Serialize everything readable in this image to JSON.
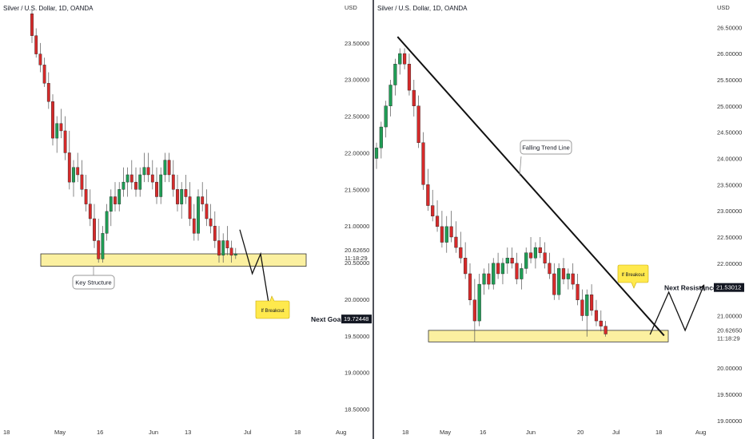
{
  "chart_data": [
    {
      "type": "candlestick",
      "title": "Silver / U.S. Dollar, 1D, OANDA",
      "y_unit": "USD",
      "ylim": [
        18.2,
        24.0
      ],
      "y_ticks": [
        "23.50000",
        "23.00000",
        "22.50000",
        "22.00000",
        "21.50000",
        "21.00000",
        "20.50000",
        "20.00000",
        "19.50000",
        "19.00000",
        "18.50000"
      ],
      "x_ticks": [
        "18",
        "May",
        "16",
        "Jun",
        "13",
        "Jul",
        "18",
        "Aug"
      ],
      "price_label": "20.62650",
      "countdown_label": "11:18:29",
      "goal_label": "19.72448",
      "zone": [
        20.45,
        20.62
      ],
      "candles": [
        [
          23.9,
          23.95,
          23.5,
          23.6
        ],
        [
          23.6,
          23.7,
          23.3,
          23.35
        ],
        [
          23.35,
          23.5,
          23.1,
          23.2
        ],
        [
          23.2,
          23.3,
          22.9,
          22.95
        ],
        [
          22.95,
          23.1,
          22.6,
          22.7
        ],
        [
          22.7,
          22.8,
          22.1,
          22.2
        ],
        [
          22.2,
          22.5,
          22.0,
          22.4
        ],
        [
          22.4,
          22.6,
          22.2,
          22.3
        ],
        [
          22.3,
          22.5,
          21.9,
          22.0
        ],
        [
          22.0,
          22.3,
          21.5,
          21.6
        ],
        [
          21.6,
          21.9,
          21.4,
          21.8
        ],
        [
          21.8,
          22.0,
          21.6,
          21.7
        ],
        [
          21.7,
          21.9,
          21.4,
          21.5
        ],
        [
          21.5,
          21.7,
          21.2,
          21.3
        ],
        [
          21.3,
          21.5,
          21.0,
          21.1
        ],
        [
          21.1,
          21.3,
          20.7,
          20.8
        ],
        [
          20.8,
          21.1,
          20.5,
          20.55
        ],
        [
          20.55,
          21.0,
          20.5,
          20.9
        ],
        [
          20.9,
          21.3,
          20.8,
          21.2
        ],
        [
          21.2,
          21.5,
          21.0,
          21.4
        ],
        [
          21.4,
          21.6,
          21.2,
          21.3
        ],
        [
          21.3,
          21.6,
          21.2,
          21.5
        ],
        [
          21.5,
          21.8,
          21.4,
          21.6
        ],
        [
          21.6,
          21.8,
          21.4,
          21.7
        ],
        [
          21.7,
          21.9,
          21.5,
          21.6
        ],
        [
          21.6,
          21.8,
          21.4,
          21.5
        ],
        [
          21.5,
          21.8,
          21.4,
          21.7
        ],
        [
          21.7,
          22.0,
          21.6,
          21.8
        ],
        [
          21.8,
          22.0,
          21.6,
          21.7
        ],
        [
          21.7,
          21.9,
          21.5,
          21.6
        ],
        [
          21.6,
          21.8,
          21.3,
          21.4
        ],
        [
          21.4,
          21.8,
          21.3,
          21.7
        ],
        [
          21.7,
          22.0,
          21.6,
          21.9
        ],
        [
          21.9,
          22.0,
          21.6,
          21.7
        ],
        [
          21.7,
          21.9,
          21.4,
          21.5
        ],
        [
          21.5,
          21.7,
          21.2,
          21.3
        ],
        [
          21.3,
          21.6,
          21.1,
          21.5
        ],
        [
          21.5,
          21.7,
          21.3,
          21.4
        ],
        [
          21.4,
          21.6,
          21.0,
          21.1
        ],
        [
          21.1,
          21.3,
          20.8,
          20.9
        ],
        [
          20.9,
          21.5,
          20.8,
          21.4
        ],
        [
          21.4,
          21.6,
          21.2,
          21.3
        ],
        [
          21.3,
          21.5,
          21.0,
          21.1
        ],
        [
          21.1,
          21.3,
          20.9,
          21.0
        ],
        [
          21.0,
          21.2,
          20.7,
          20.8
        ],
        [
          20.8,
          21.0,
          20.5,
          20.6
        ],
        [
          20.6,
          20.9,
          20.5,
          20.8
        ],
        [
          20.8,
          21.0,
          20.6,
          20.7
        ],
        [
          20.7,
          20.8,
          20.5,
          20.6
        ],
        [
          20.6,
          20.7,
          20.55,
          20.62
        ]
      ],
      "annotations": {
        "key_structure": "Key Structure",
        "if_breakout": "If Breakout",
        "next_goal": "Next Goal"
      },
      "projection_path": [
        [
          50,
          20.95
        ],
        [
          53,
          20.35
        ],
        [
          55,
          20.62
        ],
        [
          57.5,
          19.75
        ]
      ]
    },
    {
      "type": "candlestick",
      "title": "Silver / U.S. Dollar, 1D, OANDA",
      "y_unit": "USD",
      "ylim": [
        18.8,
        26.9
      ],
      "y_ticks": [
        "26.50000",
        "26.00000",
        "25.50000",
        "25.00000",
        "24.50000",
        "24.00000",
        "23.50000",
        "23.00000",
        "22.50000",
        "22.00000",
        "21.00000",
        "20.00000",
        "19.50000",
        "19.00000"
      ],
      "x_ticks": [
        "18",
        "May",
        "16",
        "Jun",
        "20",
        "Jul",
        "18",
        "Aug"
      ],
      "price_label": "20.62650",
      "countdown_label": "11:18:29",
      "resistance_label": "21.53012",
      "zone": [
        20.5,
        20.72
      ],
      "candles": [
        [
          24.0,
          24.3,
          23.8,
          24.2
        ],
        [
          24.2,
          24.7,
          24.0,
          24.6
        ],
        [
          24.6,
          25.1,
          24.4,
          25.0
        ],
        [
          25.0,
          25.5,
          24.8,
          25.4
        ],
        [
          25.4,
          25.9,
          25.2,
          25.8
        ],
        [
          25.8,
          26.1,
          25.6,
          26.0
        ],
        [
          26.0,
          26.1,
          25.7,
          25.8
        ],
        [
          25.8,
          26.0,
          25.2,
          25.3
        ],
        [
          25.3,
          25.5,
          24.8,
          25.0
        ],
        [
          25.0,
          25.2,
          24.2,
          24.3
        ],
        [
          24.3,
          24.5,
          23.4,
          23.5
        ],
        [
          23.5,
          23.8,
          23.0,
          23.1
        ],
        [
          23.1,
          23.4,
          22.8,
          22.9
        ],
        [
          22.9,
          23.2,
          22.6,
          22.7
        ],
        [
          22.7,
          23.0,
          22.3,
          22.4
        ],
        [
          22.4,
          22.9,
          22.2,
          22.7
        ],
        [
          22.7,
          23.0,
          22.4,
          22.5
        ],
        [
          22.5,
          22.8,
          22.2,
          22.3
        ],
        [
          22.3,
          22.6,
          22.0,
          22.1
        ],
        [
          22.1,
          22.4,
          21.7,
          21.8
        ],
        [
          21.8,
          22.0,
          21.2,
          21.3
        ],
        [
          21.3,
          21.7,
          20.5,
          20.9
        ],
        [
          20.9,
          21.8,
          20.8,
          21.6
        ],
        [
          21.6,
          21.9,
          21.4,
          21.8
        ],
        [
          21.8,
          22.0,
          21.5,
          21.6
        ],
        [
          21.6,
          22.1,
          21.5,
          22.0
        ],
        [
          22.0,
          22.2,
          21.7,
          21.8
        ],
        [
          21.8,
          22.1,
          21.6,
          22.0
        ],
        [
          22.0,
          22.3,
          21.8,
          22.1
        ],
        [
          22.1,
          22.3,
          21.9,
          22.0
        ],
        [
          22.0,
          22.2,
          21.6,
          21.7
        ],
        [
          21.7,
          22.0,
          21.5,
          21.9
        ],
        [
          21.9,
          22.3,
          21.8,
          22.2
        ],
        [
          22.2,
          22.5,
          22.0,
          22.1
        ],
        [
          22.1,
          22.4,
          21.9,
          22.3
        ],
        [
          22.3,
          22.5,
          22.1,
          22.2
        ],
        [
          22.2,
          22.4,
          21.9,
          22.0
        ],
        [
          22.0,
          22.2,
          21.7,
          21.8
        ],
        [
          21.8,
          22.0,
          21.3,
          21.4
        ],
        [
          21.4,
          22.0,
          21.3,
          21.9
        ],
        [
          21.9,
          22.1,
          21.6,
          21.7
        ],
        [
          21.7,
          21.9,
          21.5,
          21.8
        ],
        [
          21.8,
          22.0,
          21.5,
          21.6
        ],
        [
          21.6,
          21.8,
          21.2,
          21.3
        ],
        [
          21.3,
          21.5,
          20.9,
          21.0
        ],
        [
          21.0,
          21.5,
          20.6,
          21.4
        ],
        [
          21.4,
          21.6,
          21.0,
          21.1
        ],
        [
          21.1,
          21.3,
          20.8,
          20.9
        ],
        [
          20.9,
          21.1,
          20.7,
          20.8
        ],
        [
          20.8,
          20.9,
          20.6,
          20.65
        ]
      ],
      "annotations": {
        "falling_trend_line": "Falling Trend Line",
        "if_breakout": "If Breakout",
        "next_resistance": "Next Resistance"
      },
      "trend_line": [
        [
          4.5,
          26.32
        ],
        [
          61.5,
          20.62
        ]
      ],
      "projection_path": [
        [
          58.5,
          20.64
        ],
        [
          62.5,
          21.45
        ],
        [
          66,
          20.72
        ],
        [
          70,
          21.58
        ]
      ]
    }
  ]
}
